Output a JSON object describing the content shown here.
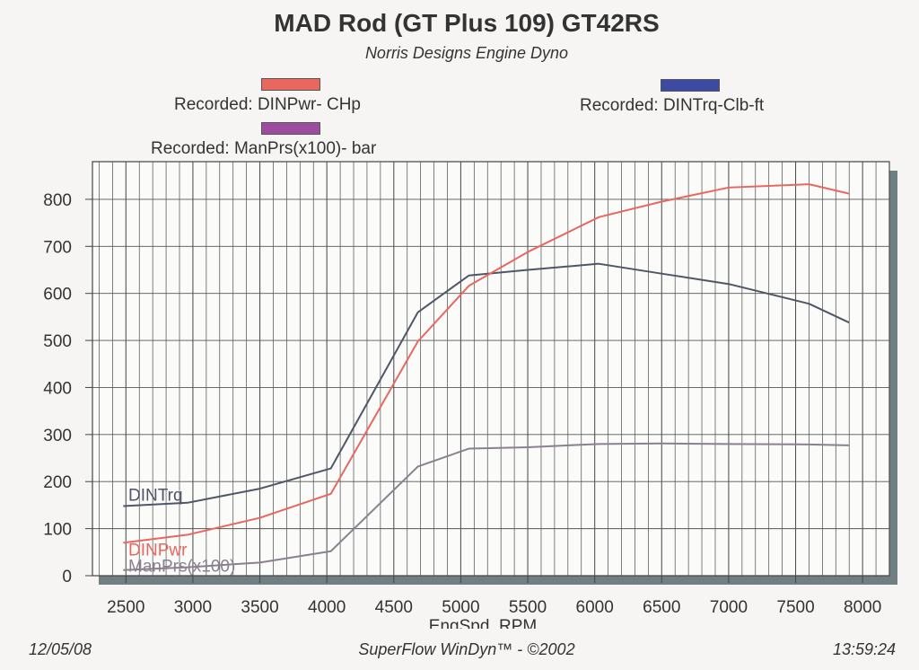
{
  "chart_data": {
    "type": "line",
    "title": "MAD Rod (GT Plus 109) GT42RS",
    "subtitle": "Norris Designs Engine Dyno",
    "xlabel": "EngSpd  RPM",
    "ylabel": "",
    "xlim": [
      2250,
      8200
    ],
    "ylim": [
      0,
      880
    ],
    "grid": true,
    "x_ticks": [
      "2500",
      "3000",
      "3500",
      "4000",
      "4500",
      "5000",
      "5500",
      "6000",
      "6500",
      "7000",
      "7500",
      "8000"
    ],
    "y_ticks": [
      "0",
      "100",
      "200",
      "300",
      "400",
      "500",
      "600",
      "700",
      "800"
    ],
    "legend": [
      {
        "label": "Recorded: DINPwr- CHp",
        "color": "#e8675f"
      },
      {
        "label": "Recorded: DINTrq-Clb-ft",
        "color": "#3d4aa3"
      },
      {
        "label": "Recorded: ManPrs(x100)- bar",
        "color": "#9c4ba0"
      }
    ],
    "series": [
      {
        "name": "DINTrq",
        "color": "#4f5668",
        "x": [
          2480,
          2960,
          3500,
          4030,
          4680,
          5060,
          5500,
          6030,
          6500,
          7000,
          7600,
          7900
        ],
        "y": [
          148,
          155,
          185,
          228,
          560,
          638,
          650,
          663,
          642,
          620,
          578,
          538
        ]
      },
      {
        "name": "DINPwr",
        "color": "#e8675f",
        "x": [
          2480,
          2960,
          3500,
          4030,
          4680,
          5060,
          5500,
          6030,
          6500,
          7000,
          7600,
          7900
        ],
        "y": [
          70,
          87,
          123,
          174,
          498,
          616,
          688,
          762,
          795,
          825,
          832,
          812
        ]
      },
      {
        "name": "ManPrs(x100)",
        "color": "#8a8090",
        "x": [
          2480,
          2960,
          3500,
          4030,
          4680,
          5060,
          5500,
          6030,
          6500,
          7000,
          7600,
          7900
        ],
        "y": [
          12,
          18,
          28,
          52,
          232,
          270,
          273,
          280,
          281,
          280,
          279,
          277
        ]
      }
    ]
  },
  "footer": {
    "date": "12/05/08",
    "software": "SuperFlow WinDyn™ - ©2002",
    "time": "13:59:24"
  }
}
